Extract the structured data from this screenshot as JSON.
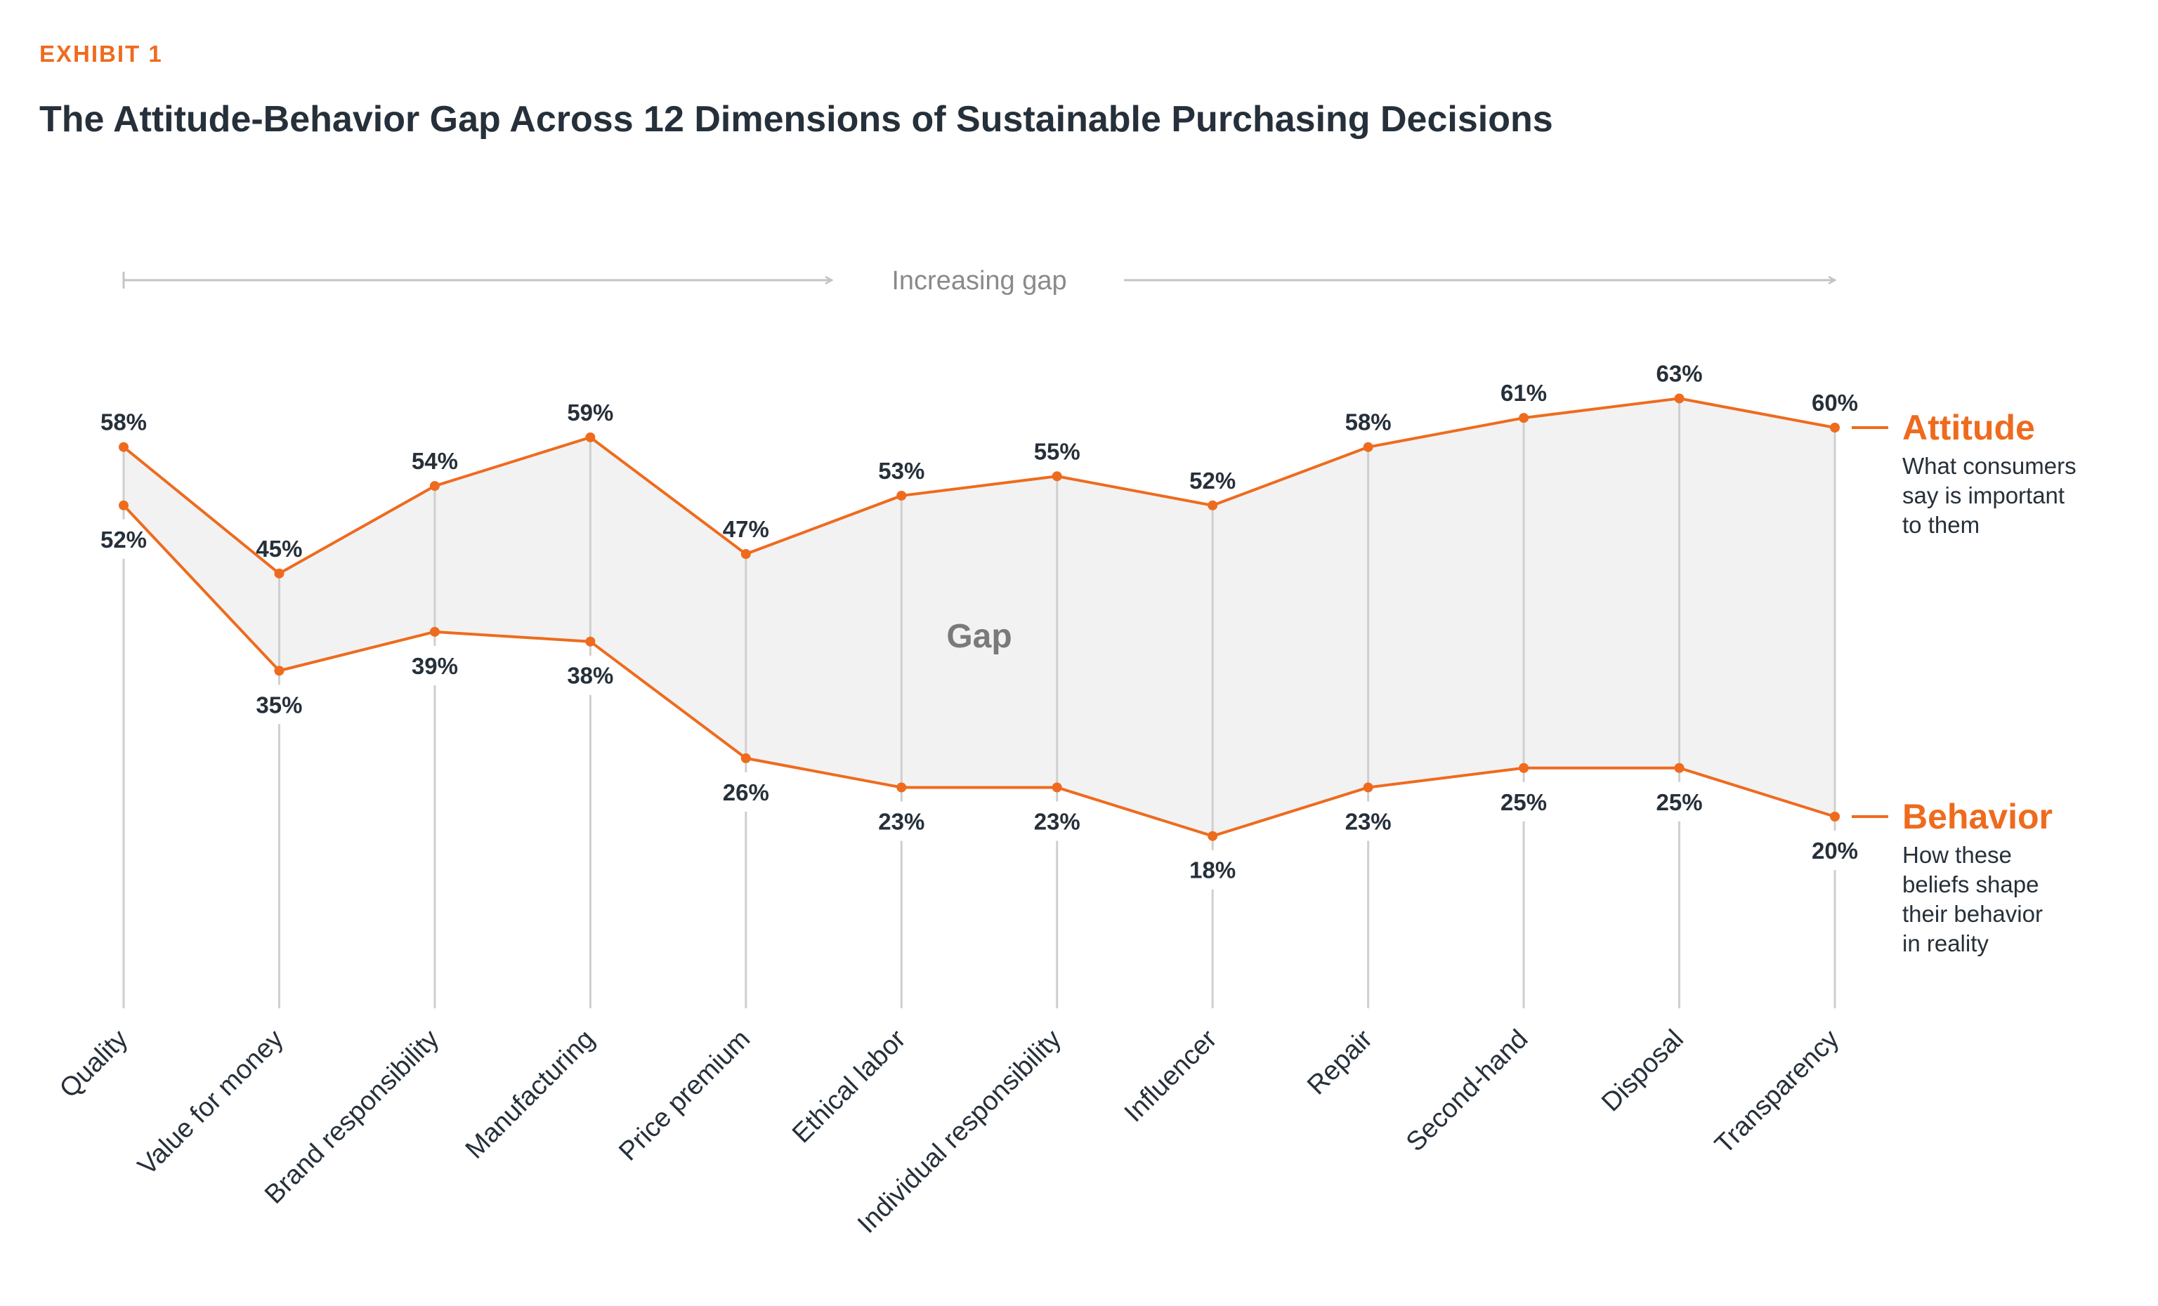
{
  "header": {
    "exhibit": "EXHIBIT 1",
    "title": "The Attitude-Behavior Gap Across 12 Dimensions of Sustainable Purchasing Decisions"
  },
  "annotations": {
    "increasing_gap": "Increasing gap",
    "gap": "Gap"
  },
  "colors": {
    "accent": "#ee6b1e",
    "text": "#26303a",
    "gap_fill": "#f2f2f2",
    "guide_line": "#cfcfcf"
  },
  "chart_data": {
    "type": "line",
    "title": "The Attitude-Behavior Gap Across 12 Dimensions of Sustainable Purchasing Decisions",
    "categories": [
      "Quality",
      "Value for money",
      "Brand responsibility",
      "Manufacturing",
      "Price premium",
      "Ethical labor",
      "Individual responsibility",
      "Influencer",
      "Repair",
      "Second-hand",
      "Disposal",
      "Transparency"
    ],
    "series": [
      {
        "name": "Attitude",
        "description": [
          "What consumers",
          "say is important",
          "to them"
        ],
        "values": [
          58,
          45,
          54,
          59,
          47,
          53,
          55,
          52,
          58,
          61,
          63,
          60
        ],
        "labels": [
          "58%",
          "45%",
          "54%",
          "59%",
          "47%",
          "53%",
          "55%",
          "52%",
          "58%",
          "61%",
          "63%",
          "60%"
        ]
      },
      {
        "name": "Behavior",
        "description": [
          "How these",
          "beliefs shape",
          "their behavior",
          "in reality"
        ],
        "values": [
          52,
          35,
          39,
          38,
          26,
          23,
          23,
          18,
          23,
          25,
          25,
          20
        ],
        "labels": [
          "52%",
          "35%",
          "39%",
          "38%",
          "26%",
          "23%",
          "23%",
          "18%",
          "23%",
          "25%",
          "25%",
          "20%"
        ]
      }
    ],
    "value_unit": "%",
    "grid": false,
    "legend": "right"
  }
}
